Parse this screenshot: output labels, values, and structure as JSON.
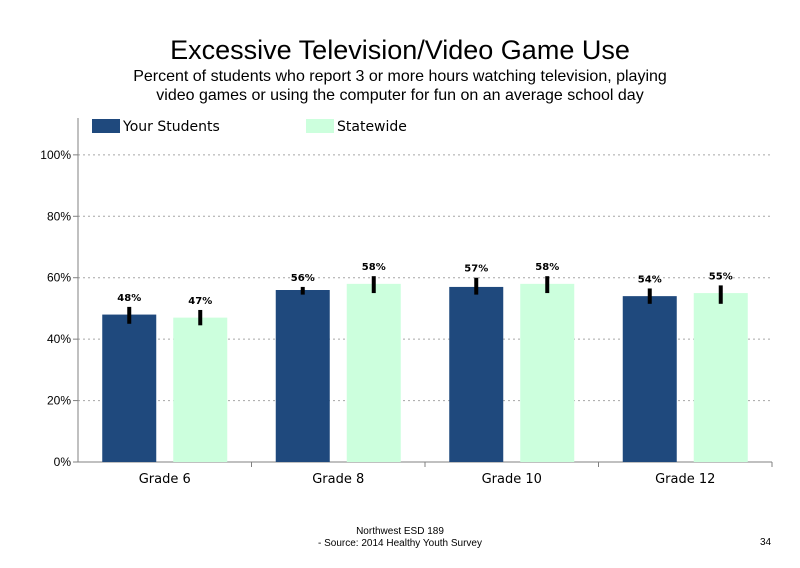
{
  "slide": {
    "footer_line1": "Northwest ESD  189",
    "footer_line2": "- Source: 2014 Healthy  Youth Survey",
    "page_number": "34"
  },
  "chart_data": {
    "type": "bar",
    "title": "Excessive Television/Video Game Use",
    "subtitle": "Percent of students who report 3 or more hours watching television, playing video games or using the computer for fun on an average school day",
    "categories": [
      "Grade 6",
      "Grade 8",
      "Grade 10",
      "Grade 12"
    ],
    "series": [
      {
        "name": "Your Students",
        "color": "#1f497d",
        "values": [
          48,
          56,
          57,
          54
        ],
        "labels": [
          "48%",
          "56%",
          "57%",
          "54%"
        ],
        "error_low": [
          45,
          54.5,
          54.5,
          51.5
        ],
        "error_high": [
          50.5,
          57,
          60,
          56.5
        ]
      },
      {
        "name": "Statewide",
        "color": "#ccffdd",
        "values": [
          47,
          58,
          58,
          55
        ],
        "labels": [
          "47%",
          "58%",
          "58%",
          "55%"
        ],
        "error_low": [
          44.5,
          55,
          55,
          51.5
        ],
        "error_high": [
          49.5,
          60.5,
          60.5,
          57.5
        ]
      }
    ],
    "ylim": [
      0,
      112
    ],
    "yticks": [
      "0%",
      "20%",
      "40%",
      "60%",
      "80%",
      "100%"
    ],
    "ytick_values": [
      0,
      20,
      40,
      60,
      80,
      100
    ],
    "gridlines": "dotted",
    "legend_position": "top-left",
    "error_bar_color": "#000000"
  }
}
